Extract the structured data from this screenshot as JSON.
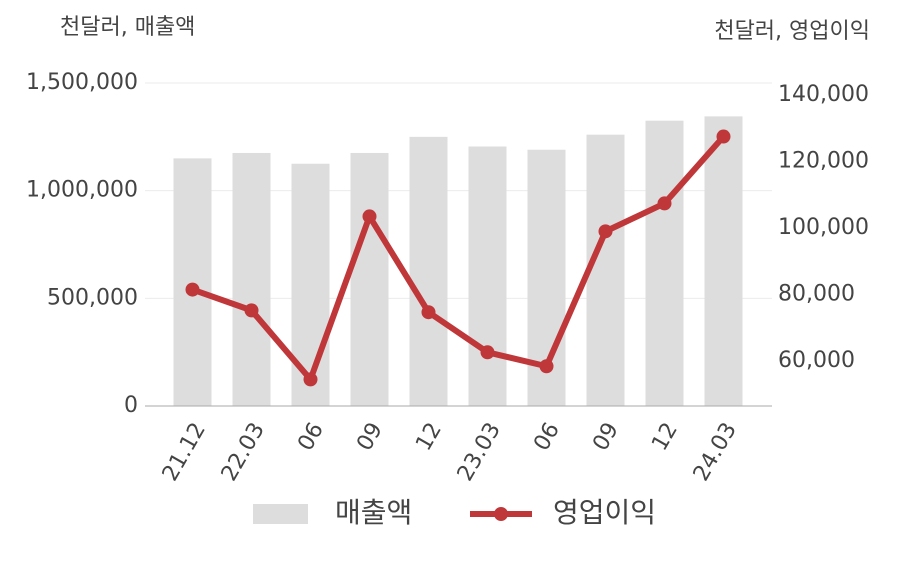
{
  "chart_data": {
    "type": "bar",
    "y_label": "천달러, 매출액",
    "y2_label": "천달러, 영업이익",
    "categories": [
      "21.12",
      "22.03",
      "06",
      "09",
      "12",
      "23.03",
      "06",
      "09",
      "12",
      "24.03"
    ],
    "series": [
      {
        "name": "매출액",
        "type": "bar",
        "color": "#dddddd",
        "values": [
          1150000,
          1175000,
          1125000,
          1175000,
          1250000,
          1205000,
          1190000,
          1260000,
          1325000,
          1345000
        ]
      },
      {
        "name": "영업이익",
        "type": "line",
        "axis": "y2",
        "color": "#c0373a",
        "values": [
          81500,
          75250,
          54500,
          103500,
          74700,
          62650,
          58450,
          99000,
          107400,
          127500
        ]
      }
    ],
    "ylim": [
      0,
      1500000
    ],
    "yticks": [
      {
        "value": 0,
        "label": "0"
      },
      {
        "value": 500000,
        "label": "500,000"
      },
      {
        "value": 1000000,
        "label": "1,000,000"
      },
      {
        "value": 1500000,
        "label": "1,500,000"
      }
    ],
    "y2lim": [
      46500,
      143600
    ],
    "y2ticks": [
      {
        "value": 60000,
        "label": "60,000"
      },
      {
        "value": 80000,
        "label": "80,000"
      },
      {
        "value": 100000,
        "label": "100,000"
      },
      {
        "value": 120000,
        "label": "120,000"
      },
      {
        "value": 140000,
        "label": "140,000"
      }
    ],
    "grid": true,
    "legend": "bottom"
  }
}
